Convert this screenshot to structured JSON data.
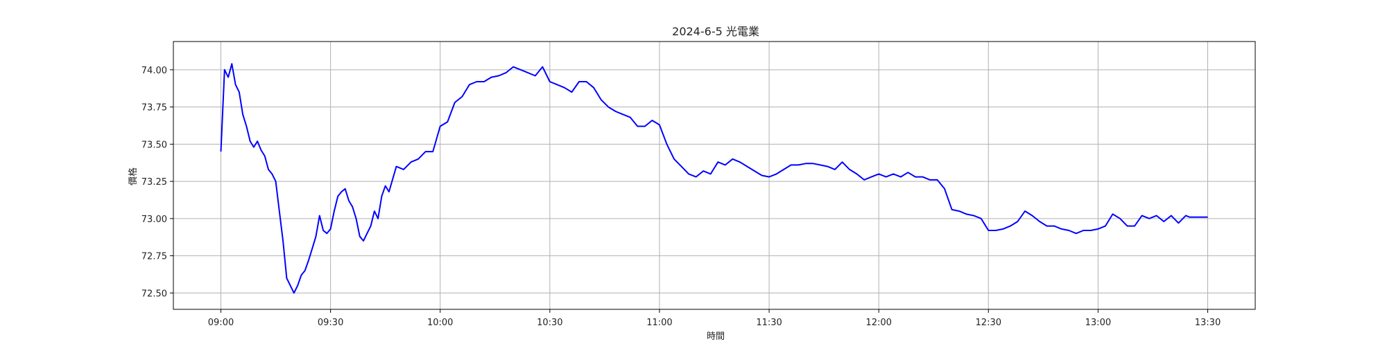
{
  "chart_data": {
    "type": "line",
    "title": "2024-6-5 光電業",
    "xlabel": "時間",
    "ylabel": "價格",
    "grid": true,
    "line_color": "#0000ff",
    "xlim": [
      "08:47",
      "13:43"
    ],
    "ylim": [
      72.39,
      74.19
    ],
    "x_ticks": [
      "09:00",
      "09:30",
      "10:00",
      "10:30",
      "11:00",
      "11:30",
      "12:00",
      "12:30",
      "13:00",
      "13:30"
    ],
    "y_ticks": [
      72.5,
      72.75,
      73.0,
      73.25,
      73.5,
      73.75,
      74.0
    ],
    "series": [
      {
        "x": [
          "09:00",
          "09:01",
          "09:02",
          "09:03",
          "09:04",
          "09:05",
          "09:06",
          "09:07",
          "09:08",
          "09:09",
          "09:10",
          "09:11",
          "09:12",
          "09:13",
          "09:14",
          "09:15",
          "09:16",
          "09:17",
          "09:18",
          "09:19",
          "09:20",
          "09:21",
          "09:22",
          "09:23",
          "09:24",
          "09:25",
          "09:26",
          "09:27",
          "09:28",
          "09:29",
          "09:30",
          "09:31",
          "09:32",
          "09:33",
          "09:34",
          "09:35",
          "09:36",
          "09:37",
          "09:38",
          "09:39",
          "09:40",
          "09:41",
          "09:42",
          "09:43",
          "09:44",
          "09:45",
          "09:46",
          "09:48",
          "09:50",
          "09:52",
          "09:54",
          "09:56",
          "09:58",
          "10:00",
          "10:02",
          "10:04",
          "10:06",
          "10:08",
          "10:10",
          "10:12",
          "10:14",
          "10:16",
          "10:18",
          "10:20",
          "10:22",
          "10:24",
          "10:26",
          "10:28",
          "10:30",
          "10:32",
          "10:34",
          "10:36",
          "10:38",
          "10:40",
          "10:42",
          "10:44",
          "10:46",
          "10:48",
          "10:50",
          "10:52",
          "10:54",
          "10:56",
          "10:58",
          "11:00",
          "11:02",
          "11:04",
          "11:06",
          "11:08",
          "11:10",
          "11:12",
          "11:14",
          "11:16",
          "11:18",
          "11:20",
          "11:22",
          "11:24",
          "11:26",
          "11:28",
          "11:30",
          "11:32",
          "11:34",
          "11:36",
          "11:38",
          "11:40",
          "11:42",
          "11:44",
          "11:46",
          "11:48",
          "11:50",
          "11:52",
          "11:54",
          "11:56",
          "11:58",
          "12:00",
          "12:02",
          "12:04",
          "12:06",
          "12:08",
          "12:10",
          "12:12",
          "12:14",
          "12:16",
          "12:18",
          "12:20",
          "12:22",
          "12:24",
          "12:26",
          "12:28",
          "12:30",
          "12:32",
          "12:34",
          "12:36",
          "12:38",
          "12:40",
          "12:42",
          "12:44",
          "12:46",
          "12:48",
          "12:50",
          "12:52",
          "12:54",
          "12:56",
          "12:58",
          "13:00",
          "13:02",
          "13:04",
          "13:06",
          "13:08",
          "13:10",
          "13:12",
          "13:14",
          "13:16",
          "13:18",
          "13:20",
          "13:22",
          "13:24",
          "13:25",
          "13:30"
        ],
        "y": [
          73.45,
          74.0,
          73.95,
          74.04,
          73.9,
          73.85,
          73.7,
          73.62,
          73.52,
          73.48,
          73.52,
          73.46,
          73.42,
          73.33,
          73.3,
          73.25,
          73.05,
          72.85,
          72.6,
          72.55,
          72.5,
          72.55,
          72.62,
          72.65,
          72.72,
          72.8,
          72.88,
          73.02,
          72.92,
          72.9,
          72.93,
          73.05,
          73.15,
          73.18,
          73.2,
          73.12,
          73.08,
          73.0,
          72.88,
          72.85,
          72.9,
          72.95,
          73.05,
          73.0,
          73.15,
          73.22,
          73.18,
          73.35,
          73.33,
          73.38,
          73.4,
          73.45,
          73.45,
          73.62,
          73.65,
          73.78,
          73.82,
          73.9,
          73.92,
          73.92,
          73.95,
          73.96,
          73.98,
          74.02,
          74.0,
          73.98,
          73.96,
          74.02,
          73.92,
          73.9,
          73.88,
          73.85,
          73.92,
          73.92,
          73.88,
          73.8,
          73.75,
          73.72,
          73.7,
          73.68,
          73.62,
          73.62,
          73.66,
          73.63,
          73.5,
          73.4,
          73.35,
          73.3,
          73.28,
          73.32,
          73.3,
          73.38,
          73.36,
          73.4,
          73.38,
          73.35,
          73.32,
          73.29,
          73.28,
          73.3,
          73.33,
          73.36,
          73.36,
          73.37,
          73.37,
          73.36,
          73.35,
          73.33,
          73.38,
          73.33,
          73.3,
          73.26,
          73.28,
          73.3,
          73.28,
          73.3,
          73.28,
          73.31,
          73.28,
          73.28,
          73.26,
          73.26,
          73.2,
          73.06,
          73.05,
          73.03,
          73.02,
          73.0,
          72.92,
          72.92,
          72.93,
          72.95,
          72.98,
          73.05,
          73.02,
          72.98,
          72.95,
          72.95,
          72.93,
          72.92,
          72.9,
          72.92,
          72.92,
          72.93,
          72.95,
          73.03,
          73.0,
          72.95,
          72.95,
          73.02,
          73.0,
          73.02,
          72.98,
          73.02,
          72.97,
          73.02,
          73.01,
          73.01
        ]
      }
    ]
  }
}
